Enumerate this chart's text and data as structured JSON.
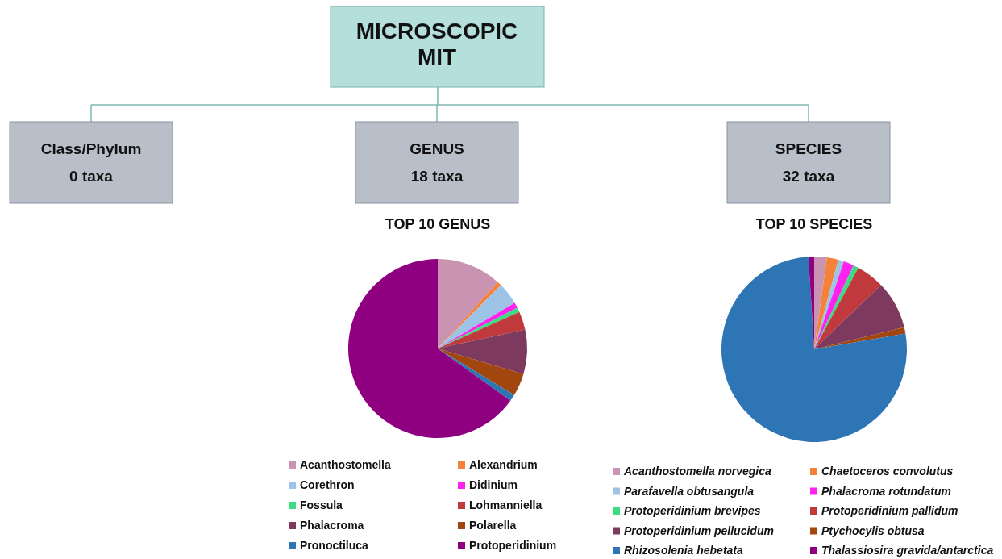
{
  "chart_data": [
    {
      "type": "other",
      "title": "MICROSCOPIC MIT",
      "annotations": [
        "Class/Phylum",
        "0 taxa",
        "GENUS",
        "18 taxa",
        "SPECIES",
        "32 taxa"
      ]
    },
    {
      "type": "pie",
      "title": "TOP 10 GENUS",
      "legend": "bottom",
      "categories": [
        "Acanthostomella",
        "Alexandrium",
        "Corethron",
        "Didinium",
        "Fossula",
        "Lohmanniella",
        "Phalacroma",
        "Polarella",
        "Pronoctiluca",
        "Protoperidinium"
      ],
      "values": [
        11.7,
        0.8,
        4.0,
        1.0,
        0.8,
        3.3,
        8.0,
        4.1,
        1.2,
        65.1
      ],
      "colors": [
        "#c993b1",
        "#f5823a",
        "#9dc3e6",
        "#ff22ee",
        "#3ddc84",
        "#c0393c",
        "#7e3a5e",
        "#a0460e",
        "#2e75b6",
        "#8e0080"
      ]
    },
    {
      "type": "pie",
      "title": "TOP 10 SPECIES",
      "legend": "bottom",
      "categories": [
        "Acanthostomella norvegica",
        "Chaetoceros convolutus",
        "Parafavella obtusangula",
        "Phalacroma rotundatum",
        "Protoperidinium brevipes",
        "Protoperidinium pallidum",
        "Protoperidinium pellucidum",
        "Ptychocylis obtusa",
        "Rhizosolenia hebetata",
        "Thalassiosira gravida/antarctica"
      ],
      "values": [
        2.2,
        2.0,
        1.0,
        1.8,
        0.9,
        4.9,
        8.4,
        1.1,
        76.7,
        1.0
      ],
      "colors": [
        "#c993b1",
        "#f5823a",
        "#9dc3e6",
        "#ff22ee",
        "#3ddc84",
        "#c0393c",
        "#7e3a5e",
        "#a0460e",
        "#2e75b6",
        "#8e0080"
      ]
    }
  ]
}
